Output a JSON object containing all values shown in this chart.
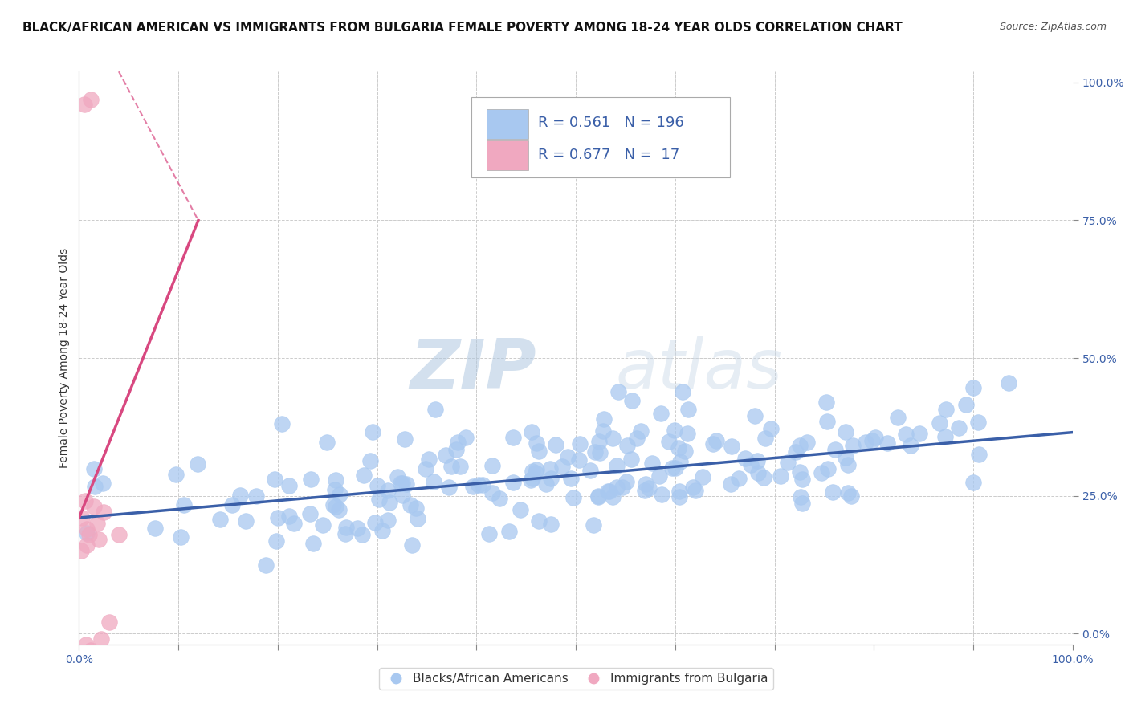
{
  "title": "BLACK/AFRICAN AMERICAN VS IMMIGRANTS FROM BULGARIA FEMALE POVERTY AMONG 18-24 YEAR OLDS CORRELATION CHART",
  "source": "Source: ZipAtlas.com",
  "ylabel": "Female Poverty Among 18-24 Year Olds",
  "xlim": [
    0,
    1.0
  ],
  "ylim": [
    0.0,
    1.0
  ],
  "yticks": [
    0.0,
    0.25,
    0.5,
    0.75,
    1.0
  ],
  "ytick_labels": [
    "0.0%",
    "25.0%",
    "50.0%",
    "75.0%",
    "100.0%"
  ],
  "xticks": [
    0.0,
    0.1,
    0.2,
    0.3,
    0.4,
    0.5,
    0.6,
    0.7,
    0.8,
    0.9,
    1.0
  ],
  "xtick_labels_show": [
    "0.0%",
    "",
    "",
    "",
    "",
    "",
    "",
    "",
    "",
    "",
    "100.0%"
  ],
  "blue_R": 0.561,
  "blue_N": 196,
  "pink_R": 0.677,
  "pink_N": 17,
  "blue_dot_color": "#a8c8f0",
  "pink_dot_color": "#f0a8c0",
  "blue_line_color": "#3a5fa8",
  "pink_line_color": "#d84880",
  "stat_text_color": "#3a5fa8",
  "tick_label_color": "#3a5fa8",
  "legend_label_blue": "Blacks/African Americans",
  "legend_label_pink": "Immigrants from Bulgaria",
  "watermark_zip": "ZIP",
  "watermark_atlas": "atlas",
  "background_color": "#ffffff",
  "grid_color": "#cccccc",
  "title_fontsize": 11,
  "source_fontsize": 9,
  "axis_label_fontsize": 10,
  "tick_fontsize": 10,
  "stat_fontsize": 13,
  "blue_slope": 0.155,
  "blue_intercept": 0.21,
  "pink_slope": 4.5,
  "pink_intercept": 0.21,
  "blue_scatter_seed": 42,
  "pink_scatter_seed": 7
}
